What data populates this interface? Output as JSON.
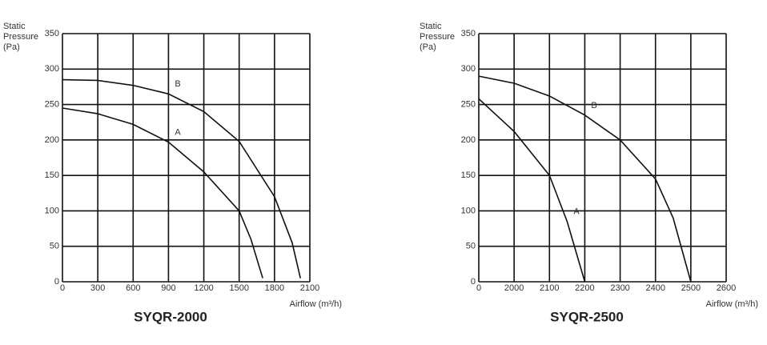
{
  "chart_data": [
    {
      "type": "line",
      "title": "SYQR-2000",
      "ylabel": [
        "Static",
        "Pressure",
        "(Pa)"
      ],
      "xlabel": "Airflow (m³/h)",
      "xlim": [
        0,
        2100
      ],
      "xticks": [
        0,
        300,
        600,
        900,
        1200,
        1500,
        1800,
        2100
      ],
      "ylim": [
        0,
        350
      ],
      "yticks": [
        0,
        50,
        100,
        150,
        200,
        250,
        300,
        350
      ],
      "grid": true,
      "series": [
        {
          "name": "A",
          "color": "#111111",
          "x": [
            0,
            300,
            600,
            900,
            1200,
            1500,
            1600,
            1700
          ],
          "values": [
            245,
            237,
            222,
            197,
            155,
            100,
            60,
            5
          ]
        },
        {
          "name": "B",
          "color": "#111111",
          "x": [
            0,
            300,
            600,
            900,
            1200,
            1500,
            1800,
            1950,
            2020
          ],
          "values": [
            285,
            284,
            277,
            265,
            240,
            198,
            120,
            55,
            5
          ]
        }
      ]
    },
    {
      "type": "line",
      "title": "SYQR-2500",
      "ylabel": [
        "Static",
        "Pressure",
        "(Pa)"
      ],
      "xlabel": "Airflow (m³/h)",
      "xlim": [
        0,
        2600
      ],
      "xticks": [
        0,
        2000,
        2100,
        2200,
        2300,
        2400,
        2500,
        2600
      ],
      "ylim": [
        0,
        350
      ],
      "yticks": [
        0,
        50,
        100,
        150,
        200,
        250,
        300,
        350
      ],
      "grid": true,
      "series": [
        {
          "name": "A",
          "color": "#111111",
          "x": [
            0,
            2000,
            2100,
            2150,
            2200
          ],
          "values": [
            258,
            212,
            150,
            85,
            0
          ]
        },
        {
          "name": "B",
          "color": "#111111",
          "x": [
            0,
            2000,
            2100,
            2200,
            2300,
            2400,
            2450,
            2500
          ],
          "values": [
            290,
            280,
            262,
            235,
            200,
            145,
            90,
            0
          ]
        }
      ]
    }
  ]
}
